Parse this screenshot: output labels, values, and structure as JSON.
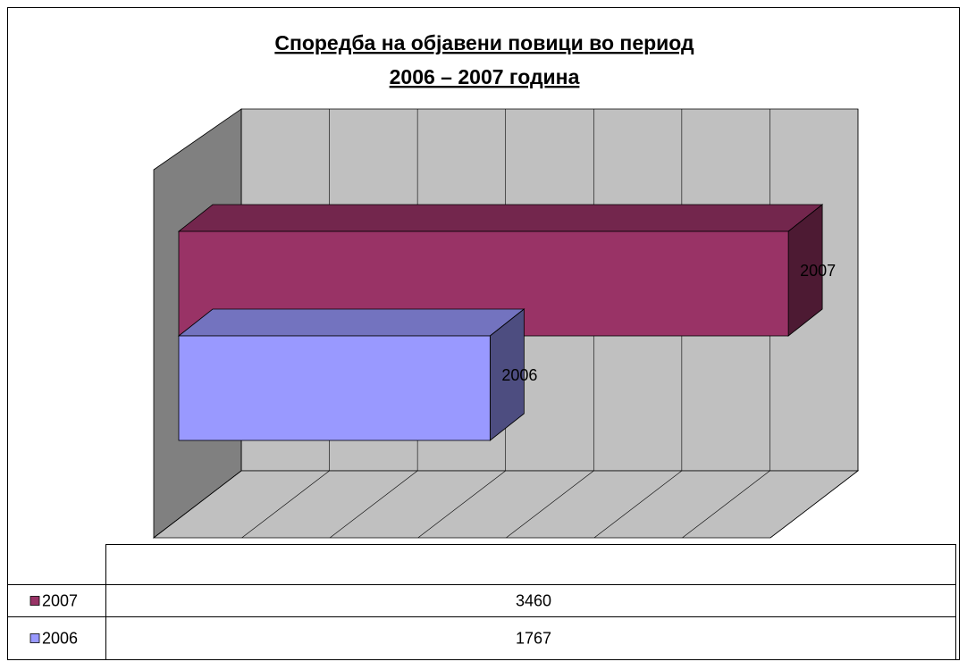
{
  "chart_data": {
    "type": "bar",
    "orientation": "horizontal",
    "title": [
      "Споредба на објавени повици во период ",
      "2006 – 2007 година"
    ],
    "categories": [
      null
    ],
    "series": [
      {
        "name": "2007",
        "color": "#993366",
        "values": [
          3460
        ]
      },
      {
        "name": "2006",
        "color": "#9999ff",
        "values": [
          1767
        ]
      }
    ],
    "xlim": [
      0,
      3500
    ],
    "xticks": [
      0,
      500,
      1000,
      1500,
      2000,
      2500,
      3000,
      3500
    ],
    "grid": true
  }
}
